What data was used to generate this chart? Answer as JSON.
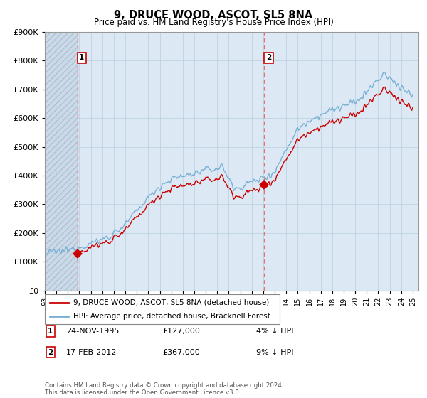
{
  "title": "9, DRUCE WOOD, ASCOT, SL5 8NA",
  "subtitle": "Price paid vs. HM Land Registry's House Price Index (HPI)",
  "legend_line1": "9, DRUCE WOOD, ASCOT, SL5 8NA (detached house)",
  "legend_line2": "HPI: Average price, detached house, Bracknell Forest",
  "sale1_label": "1",
  "sale1_date": "24-NOV-1995",
  "sale1_price": "£127,000",
  "sale1_hpi": "4% ↓ HPI",
  "sale2_label": "2",
  "sale2_date": "17-FEB-2012",
  "sale2_price": "£367,000",
  "sale2_hpi": "9% ↓ HPI",
  "sale1_y": 127000,
  "sale2_y": 367000,
  "hpi_color": "#7ab0d4",
  "price_color": "#cc0000",
  "vline_color": "#e87070",
  "plot_bg_color": "#dce9f5",
  "background_color": "#ffffff",
  "grid_color": "#b8cfe0",
  "footer": "Contains HM Land Registry data © Crown copyright and database right 2024.\nThis data is licensed under the Open Government Licence v3.0.",
  "ylim": [
    0,
    900000
  ],
  "xlim_start": 1993.0,
  "xlim_end": 2025.5
}
